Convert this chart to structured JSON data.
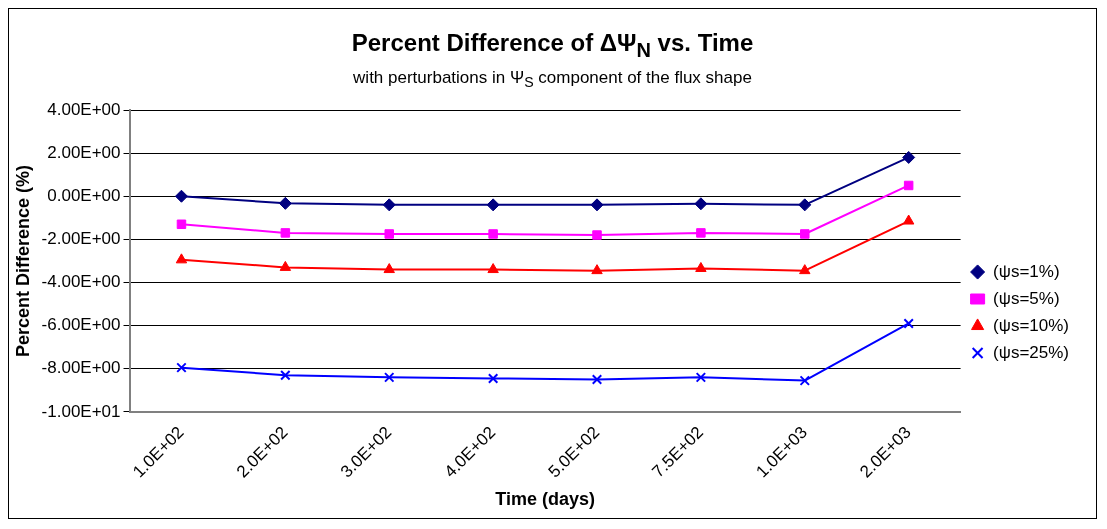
{
  "chart_data": {
    "type": "line",
    "title": "Percent Difference of ΔΨ$_{N}$ vs. Time",
    "subtitle": "with perturbations in Ψ$_{S}$ component of the flux shape",
    "xlabel": "Time (days)",
    "ylabel": "Percent Difference (%)",
    "categories": [
      "1.0E+02",
      "2.0E+02",
      "3.0E+02",
      "4.0E+02",
      "5.0E+02",
      "7.5E+02",
      "1.0E+03",
      "2.0E+03"
    ],
    "series": [
      {
        "name": "(ψs=1%)",
        "color": "#000080",
        "marker": "diamond",
        "values": [
          0,
          -0.33,
          -0.4,
          -0.4,
          -0.4,
          -0.35,
          -0.4,
          1.8
        ]
      },
      {
        "name": "(ψs=5%)",
        "color": "#ff00ff",
        "marker": "square",
        "values": [
          -1.3,
          -1.7,
          -1.75,
          -1.75,
          -1.8,
          -1.7,
          -1.75,
          0.5
        ]
      },
      {
        "name": "(ψs=10%)",
        "color": "#ff0000",
        "marker": "triangle",
        "values": [
          -2.95,
          -3.3,
          -3.4,
          -3.4,
          -3.45,
          -3.35,
          -3.45,
          -1.15
        ]
      },
      {
        "name": "(ψs=25%)",
        "color": "#0000ff",
        "marker": "cross",
        "values": [
          -7.95,
          -8.3,
          -8.4,
          -8.45,
          -8.5,
          -8.4,
          -8.55,
          -5.9
        ]
      }
    ],
    "ylim": [
      -10,
      4
    ],
    "yticks": [
      {
        "value": 4,
        "label": "4.00E+00"
      },
      {
        "value": 2,
        "label": "2.00E+00"
      },
      {
        "value": 0,
        "label": "0.00E+00"
      },
      {
        "value": -2,
        "label": "-2.00E+00"
      },
      {
        "value": -4,
        "label": "-4.00E+00"
      },
      {
        "value": -6,
        "label": "-6.00E+00"
      },
      {
        "value": -8,
        "label": "-8.00E+00"
      },
      {
        "value": -10,
        "label": "-1.00E+01"
      }
    ],
    "grid": "y",
    "legend": "right"
  }
}
